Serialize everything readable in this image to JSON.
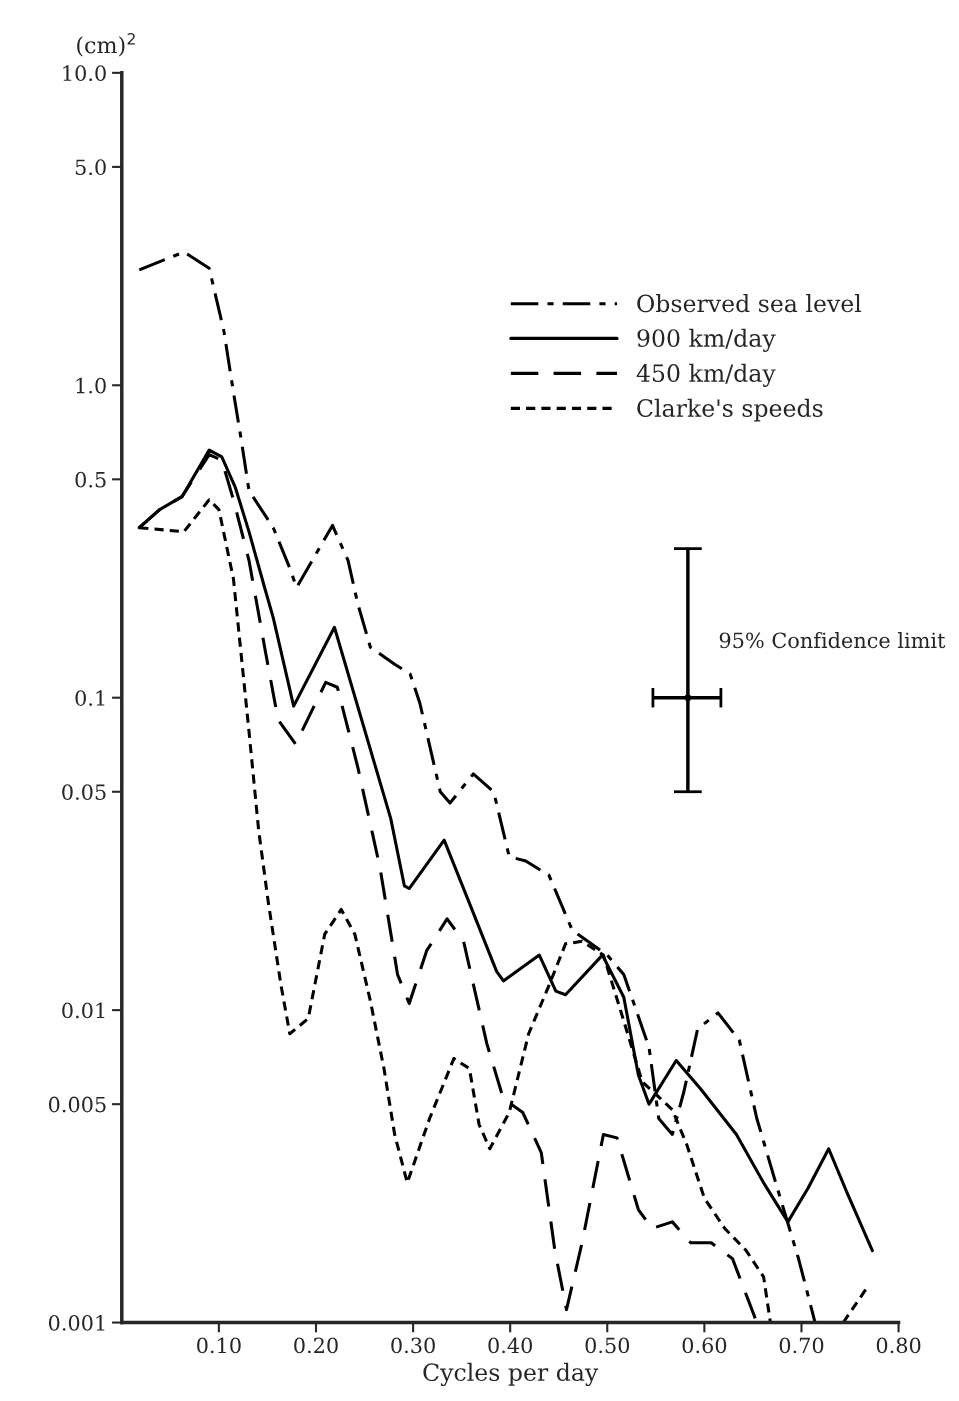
{
  "chart_data": {
    "type": "line",
    "xlabel": "Cycles per day",
    "ylabel": "(cm)$^{2}$",
    "log": "y",
    "xlim": [
      0,
      0.8
    ],
    "xticks": [
      {
        "value": 0.1,
        "label": "0.10"
      },
      {
        "value": 0.2,
        "label": "0.20"
      },
      {
        "value": 0.3,
        "label": "0.30"
      },
      {
        "value": 0.4,
        "label": "0.40"
      },
      {
        "value": 0.5,
        "label": "0.50"
      },
      {
        "value": 0.6,
        "label": "0.60"
      },
      {
        "value": 0.7,
        "label": "0.70"
      },
      {
        "value": 0.8,
        "label": "0.80"
      }
    ],
    "ylim": [
      0.001,
      10
    ],
    "yticks": [
      0.001,
      0.005,
      0.01,
      0.05,
      0.1,
      {
        "value": 0.5,
        "label": "0.5"
      },
      {
        "value": 1,
        "label": "1.0"
      },
      {
        "value": 5,
        "label": "5.0"
      },
      {
        "value": 10,
        "label": "10.0"
      }
    ],
    "grid": false,
    "legend": "top right",
    "marker": "none",
    "series": [
      {
        "name": "Observed sea level",
        "color": "#000000",
        "line_style": "dashdot",
        "x": [
          0.018,
          0.064,
          0.09,
          0.105,
          0.115,
          0.123,
          0.131,
          0.156,
          0.173,
          0.18,
          0.217,
          0.233,
          0.243,
          0.256,
          0.281,
          0.297,
          0.307,
          0.328,
          0.338,
          0.362,
          0.383,
          0.399,
          0.416,
          0.44,
          0.464,
          0.5,
          0.517,
          0.543,
          0.553,
          0.567,
          0.579,
          0.593,
          0.614,
          0.636,
          0.654,
          0.675,
          0.697,
          0.714
        ],
        "values": [
          2.34,
          2.67,
          2.37,
          1.5,
          0.95,
          0.67,
          0.46,
          0.35,
          0.26,
          0.225,
          0.356,
          0.275,
          0.2,
          0.145,
          0.128,
          0.119,
          0.096,
          0.05,
          0.046,
          0.057,
          0.05,
          0.031,
          0.03,
          0.027,
          0.018,
          0.015,
          0.013,
          0.0076,
          0.0045,
          0.004,
          0.0055,
          0.0087,
          0.0098,
          0.008,
          0.0045,
          0.0027,
          0.0016,
          0.001
        ]
      },
      {
        "name": "900 km/day",
        "color": "#000000",
        "line_style": "solid",
        "x": [
          0.018,
          0.039,
          0.062,
          0.09,
          0.103,
          0.117,
          0.131,
          0.148,
          0.156,
          0.177,
          0.219,
          0.277,
          0.291,
          0.296,
          0.332,
          0.358,
          0.386,
          0.393,
          0.43,
          0.447,
          0.457,
          0.495,
          0.517,
          0.532,
          0.543,
          0.571,
          0.596,
          0.633,
          0.661,
          0.686,
          0.707,
          0.728,
          0.747,
          0.773
        ],
        "values": [
          0.35,
          0.4,
          0.44,
          0.62,
          0.59,
          0.47,
          0.34,
          0.22,
          0.18,
          0.094,
          0.168,
          0.041,
          0.025,
          0.0245,
          0.035,
          0.022,
          0.0133,
          0.0124,
          0.015,
          0.0115,
          0.0112,
          0.015,
          0.011,
          0.0062,
          0.005,
          0.0069,
          0.0056,
          0.004,
          0.0028,
          0.0021,
          0.0027,
          0.0036,
          0.0026,
          0.0017
        ]
      },
      {
        "name": "450 km/day",
        "color": "#000000",
        "line_style": "dashed",
        "x": [
          0.018,
          0.039,
          0.062,
          0.09,
          0.103,
          0.115,
          0.131,
          0.148,
          0.161,
          0.179,
          0.21,
          0.222,
          0.243,
          0.266,
          0.284,
          0.296,
          0.314,
          0.335,
          0.352,
          0.376,
          0.393,
          0.413,
          0.432,
          0.446,
          0.458,
          0.474,
          0.496,
          0.51,
          0.532,
          0.546,
          0.567,
          0.586,
          0.607,
          0.629,
          0.654
        ],
        "values": [
          0.35,
          0.4,
          0.44,
          0.6,
          0.575,
          0.43,
          0.275,
          0.14,
          0.085,
          0.071,
          0.112,
          0.108,
          0.06,
          0.0285,
          0.013,
          0.0105,
          0.0155,
          0.0196,
          0.0166,
          0.0078,
          0.0052,
          0.0047,
          0.0035,
          0.0017,
          0.0011,
          0.0018,
          0.004,
          0.0039,
          0.0023,
          0.002,
          0.0021,
          0.0018,
          0.0018,
          0.0016,
          0.001
        ]
      },
      {
        "name": "Clarke's speeds",
        "color": "#000000",
        "line_style": "dotted",
        "x": [
          0.018,
          0.064,
          0.09,
          0.1,
          0.115,
          0.131,
          0.141,
          0.151,
          0.164,
          0.173,
          0.192,
          0.209,
          0.226,
          0.24,
          0.256,
          0.27,
          0.281,
          0.294,
          0.317,
          0.342,
          0.358,
          0.368,
          0.379,
          0.399,
          0.419,
          0.44,
          0.457,
          0.474,
          0.496,
          0.514,
          0.536,
          0.567,
          0.582,
          0.6,
          0.621,
          0.643,
          0.661,
          0.668,
          0.7,
          0.743,
          0.768
        ],
        "values": [
          0.35,
          0.34,
          0.43,
          0.4,
          0.24,
          0.078,
          0.0375,
          0.022,
          0.012,
          0.0084,
          0.0094,
          0.0175,
          0.021,
          0.0175,
          0.0107,
          0.0065,
          0.004,
          0.0028,
          0.0045,
          0.007,
          0.0065,
          0.0043,
          0.0036,
          0.0047,
          0.0084,
          0.012,
          0.0163,
          0.0166,
          0.015,
          0.0099,
          0.0059,
          0.0048,
          0.0037,
          0.0025,
          0.002,
          0.0017,
          0.0014,
          0.001,
          null,
          0.001,
          0.0013
        ]
      },
      {
        "type": "scatter",
        "name": "95% Confidence limit",
        "color": "#000000",
        "x": [
          0.583
        ],
        "values": [
          0.1
        ],
        "errors": [
          [
            0.05,
            0.3
          ]
        ],
        "xerrors": [
          [
            0.547,
            0.617
          ]
        ]
      }
    ]
  }
}
